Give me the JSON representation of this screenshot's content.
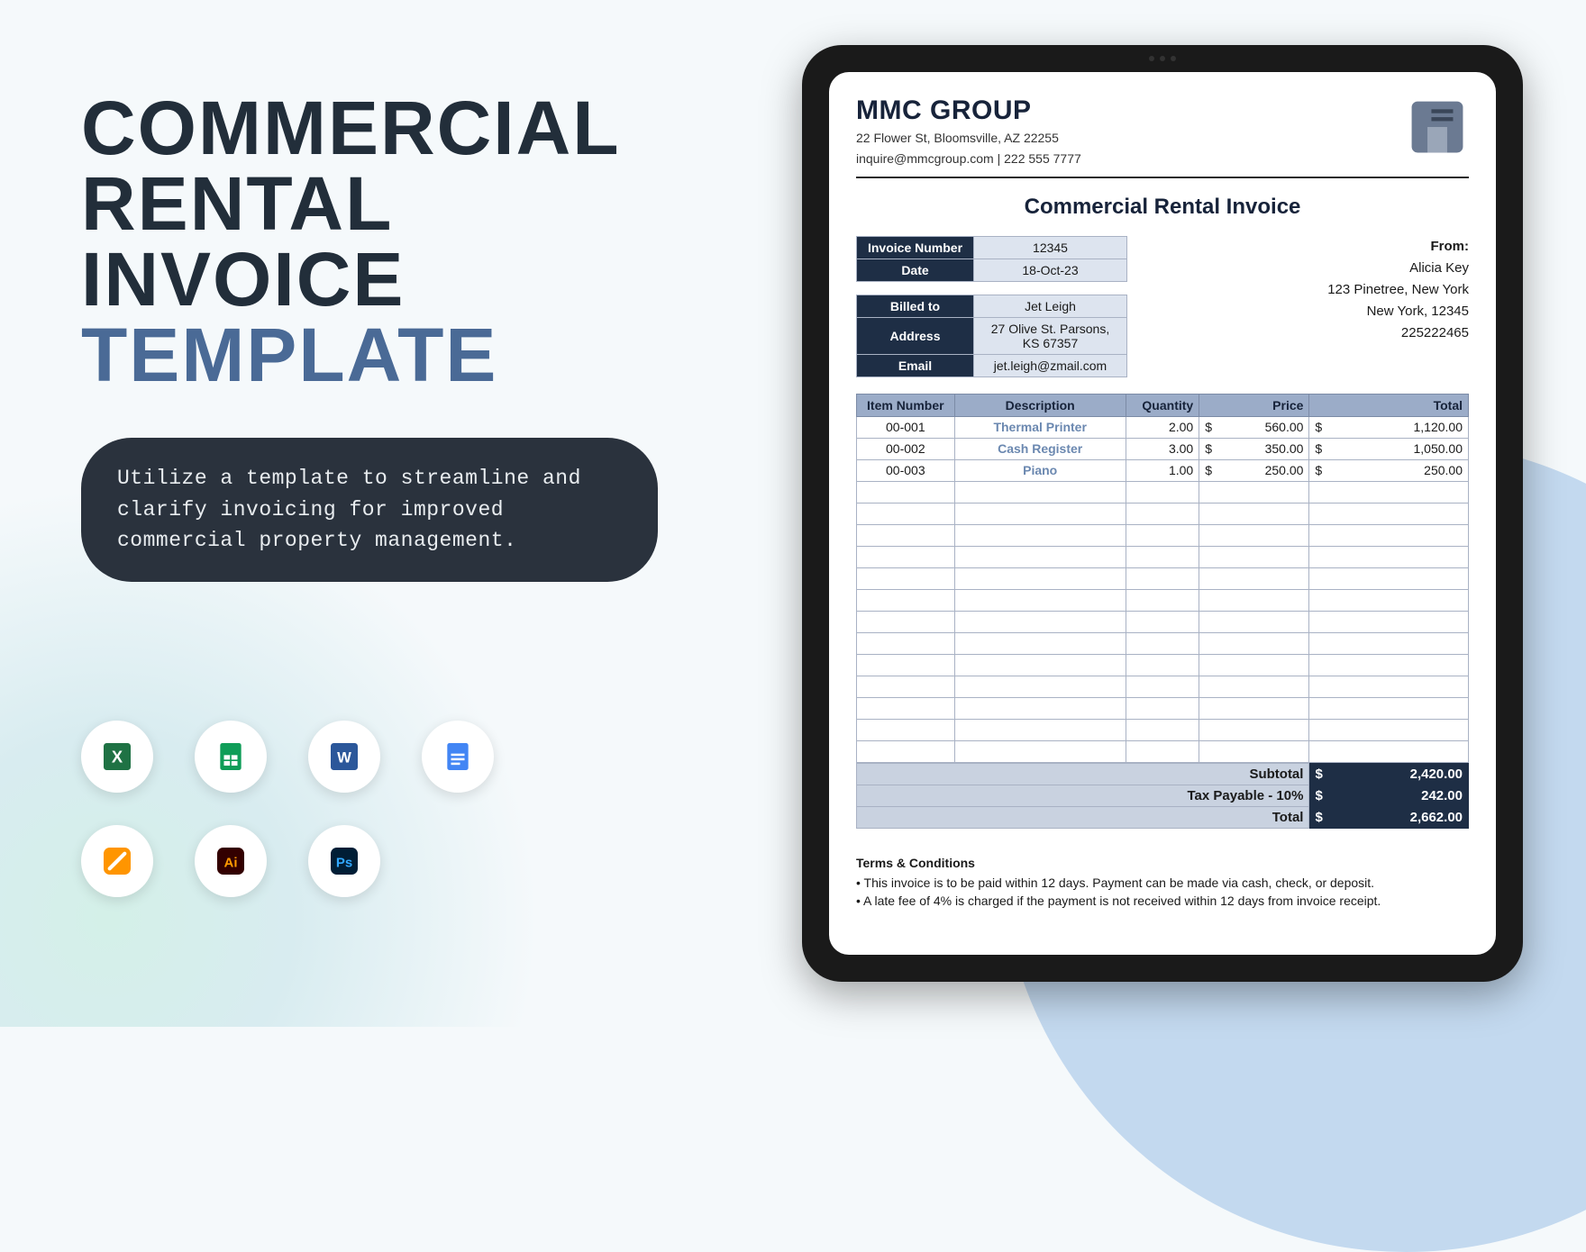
{
  "left": {
    "title_line1": "COMMERCIAL",
    "title_line2": "RENTAL",
    "title_line3": "INVOICE",
    "title_line4": "TEMPLATE",
    "blurb": "Utilize a template to streamline and clarify invoicing for improved commercial property management."
  },
  "format_icons": [
    "excel",
    "sheets",
    "word",
    "docs",
    "pages",
    "illustrator",
    "photoshop"
  ],
  "invoice": {
    "company_name": "MMC GROUP",
    "company_address": "22 Flower St, Bloomsville, AZ 22255",
    "company_contact": "inquire@mmcgroup.com | 222 555 7777",
    "doc_title": "Commercial Rental Invoice",
    "meta": {
      "invoice_number_label": "Invoice Number",
      "invoice_number": "12345",
      "date_label": "Date",
      "date": "18-Oct-23",
      "billed_to_label": "Billed to",
      "billed_to": "Jet Leigh",
      "address_label": "Address",
      "address": "27 Olive St. Parsons, KS 67357",
      "email_label": "Email",
      "email": "jet.leigh@zmail.com"
    },
    "from": {
      "label": "From:",
      "name": "Alicia Key",
      "addr1": "123 Pinetree, New York",
      "addr2": "New York, 12345",
      "phone": "225222465"
    },
    "columns": {
      "item": "Item Number",
      "desc": "Description",
      "qty": "Quantity",
      "price": "Price",
      "total": "Total"
    },
    "lines": [
      {
        "item": "00-001",
        "desc": "Thermal Printer",
        "qty": "2.00",
        "price": "560.00",
        "total": "1,120.00"
      },
      {
        "item": "00-002",
        "desc": "Cash Register",
        "qty": "3.00",
        "price": "350.00",
        "total": "1,050.00"
      },
      {
        "item": "00-003",
        "desc": "Piano",
        "qty": "1.00",
        "price": "250.00",
        "total": "250.00"
      }
    ],
    "empty_rows": 13,
    "currency": "$",
    "totals": {
      "subtotal_label": "Subtotal",
      "subtotal": "2,420.00",
      "tax_label": "Tax Payable - 10%",
      "tax": "242.00",
      "total_label": "Total",
      "total": "2,662.00"
    },
    "terms": {
      "heading": "Terms & Conditions",
      "items": [
        "• This invoice is to be paid within 12 days. Payment can be made via cash, check, or deposit.",
        "• A late fee of 4% is charged if the payment is not received within 12 days from invoice receipt."
      ]
    }
  },
  "style": {
    "title_color": "#222e3a",
    "accent_color": "#4a6a96",
    "blurb_bg": "#2a323d",
    "blurb_fg": "#e8ecef",
    "tablet_bezel": "#1a1a1a",
    "table_header_bg": "#9bacc8",
    "cell_label_bg": "#1e2e45",
    "cell_val_bg": "#dde4ef",
    "bg_circle": "#c3d9ef"
  }
}
